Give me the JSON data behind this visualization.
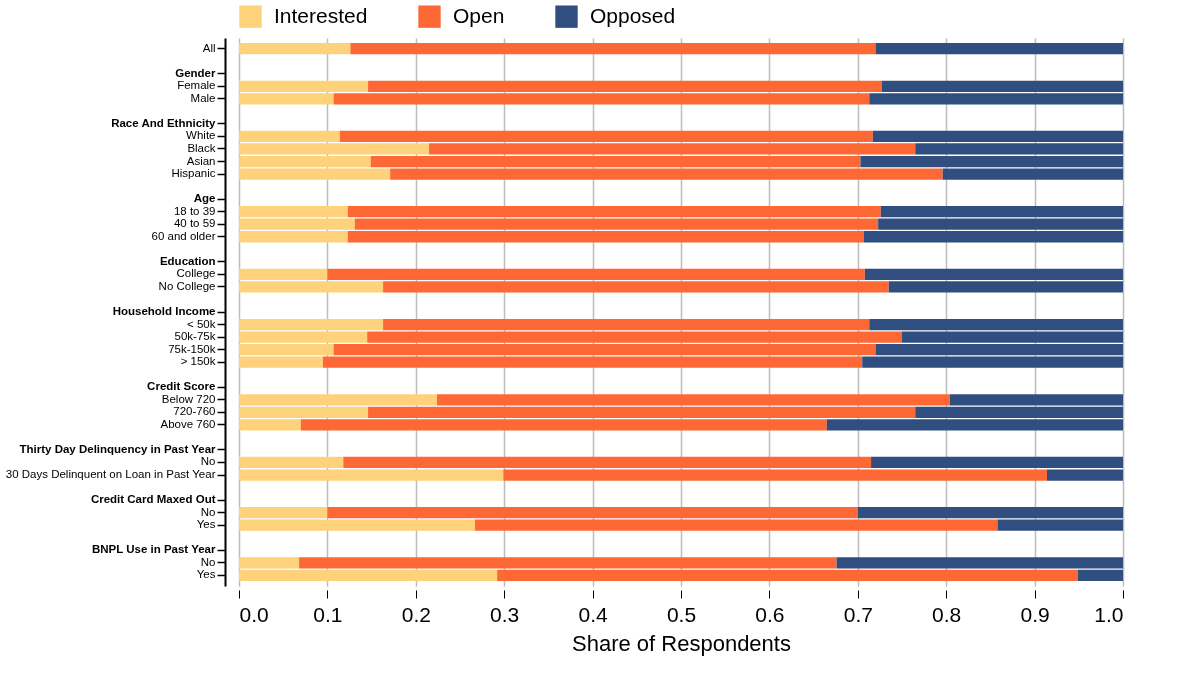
{
  "chart_data": {
    "type": "bar",
    "orientation": "horizontal",
    "stacked": true,
    "xlabel": "Share of Respondents",
    "categories": [
      "All",
      null,
      "Gender",
      "Female",
      "Male",
      null,
      "Race And Ethnicity",
      "White",
      "Black",
      "Asian",
      "Hispanic",
      null,
      "Age",
      "18 to 39",
      "40 to 59",
      "60 and older",
      null,
      "Education",
      "College",
      "No College",
      null,
      "Household Income",
      "< 50k",
      "50k-75k",
      "75k-150k",
      "> 150k",
      null,
      "Credit Score",
      "Below 720",
      "720-760",
      "Above 760",
      null,
      "Thirty Day Delinquency in Past Year",
      "No",
      "30 Days Delinquent on Loan in Past Year",
      null,
      "Credit Card Maxed Out",
      "No",
      "Yes",
      null,
      "BNPL Use in Past Year",
      "No",
      "Yes"
    ],
    "series": [
      {
        "name": "Interested",
        "color": "#fed17b",
        "values": [
          0.126,
          null,
          null,
          0.146,
          0.107,
          null,
          null,
          0.114,
          0.215,
          0.149,
          0.171,
          null,
          null,
          0.123,
          0.131,
          0.123,
          null,
          null,
          0.1,
          0.163,
          null,
          null,
          0.163,
          0.145,
          0.107,
          0.095,
          null,
          null,
          0.224,
          0.146,
          0.07,
          null,
          null,
          0.118,
          0.299,
          null,
          null,
          0.1,
          0.267,
          null,
          null,
          0.068,
          0.292
        ]
      },
      {
        "name": "Open",
        "color": "#fd6834",
        "values": [
          0.594,
          null,
          null,
          0.581,
          0.606,
          null,
          null,
          0.603,
          0.55,
          0.554,
          0.625,
          null,
          null,
          0.603,
          0.592,
          0.584,
          null,
          null,
          0.608,
          0.572,
          null,
          null,
          0.55,
          0.605,
          0.613,
          0.61,
          null,
          null,
          0.58,
          0.619,
          0.595,
          null,
          null,
          0.597,
          0.615,
          null,
          null,
          0.6,
          0.591,
          null,
          null,
          0.608,
          0.657
        ]
      },
      {
        "name": "Opposed",
        "color": "#314e80",
        "values": [
          0.28,
          null,
          null,
          0.273,
          0.287,
          null,
          null,
          0.283,
          0.235,
          0.297,
          0.204,
          null,
          null,
          0.274,
          0.277,
          0.293,
          null,
          null,
          0.292,
          0.265,
          null,
          null,
          0.287,
          0.25,
          0.28,
          0.295,
          null,
          null,
          0.196,
          0.235,
          0.335,
          null,
          null,
          0.285,
          0.086,
          null,
          null,
          0.3,
          0.142,
          null,
          null,
          0.324,
          0.051
        ]
      }
    ],
    "xlim": [
      0,
      1
    ],
    "xticks": [
      {
        "value": 0,
        "label": "0.0"
      },
      0.1,
      0.2,
      0.3,
      0.4,
      0.5,
      0.6,
      0.7,
      0.8,
      0.9,
      {
        "value": 1,
        "label": "1.0"
      }
    ],
    "grid": "x",
    "legend": "top"
  }
}
